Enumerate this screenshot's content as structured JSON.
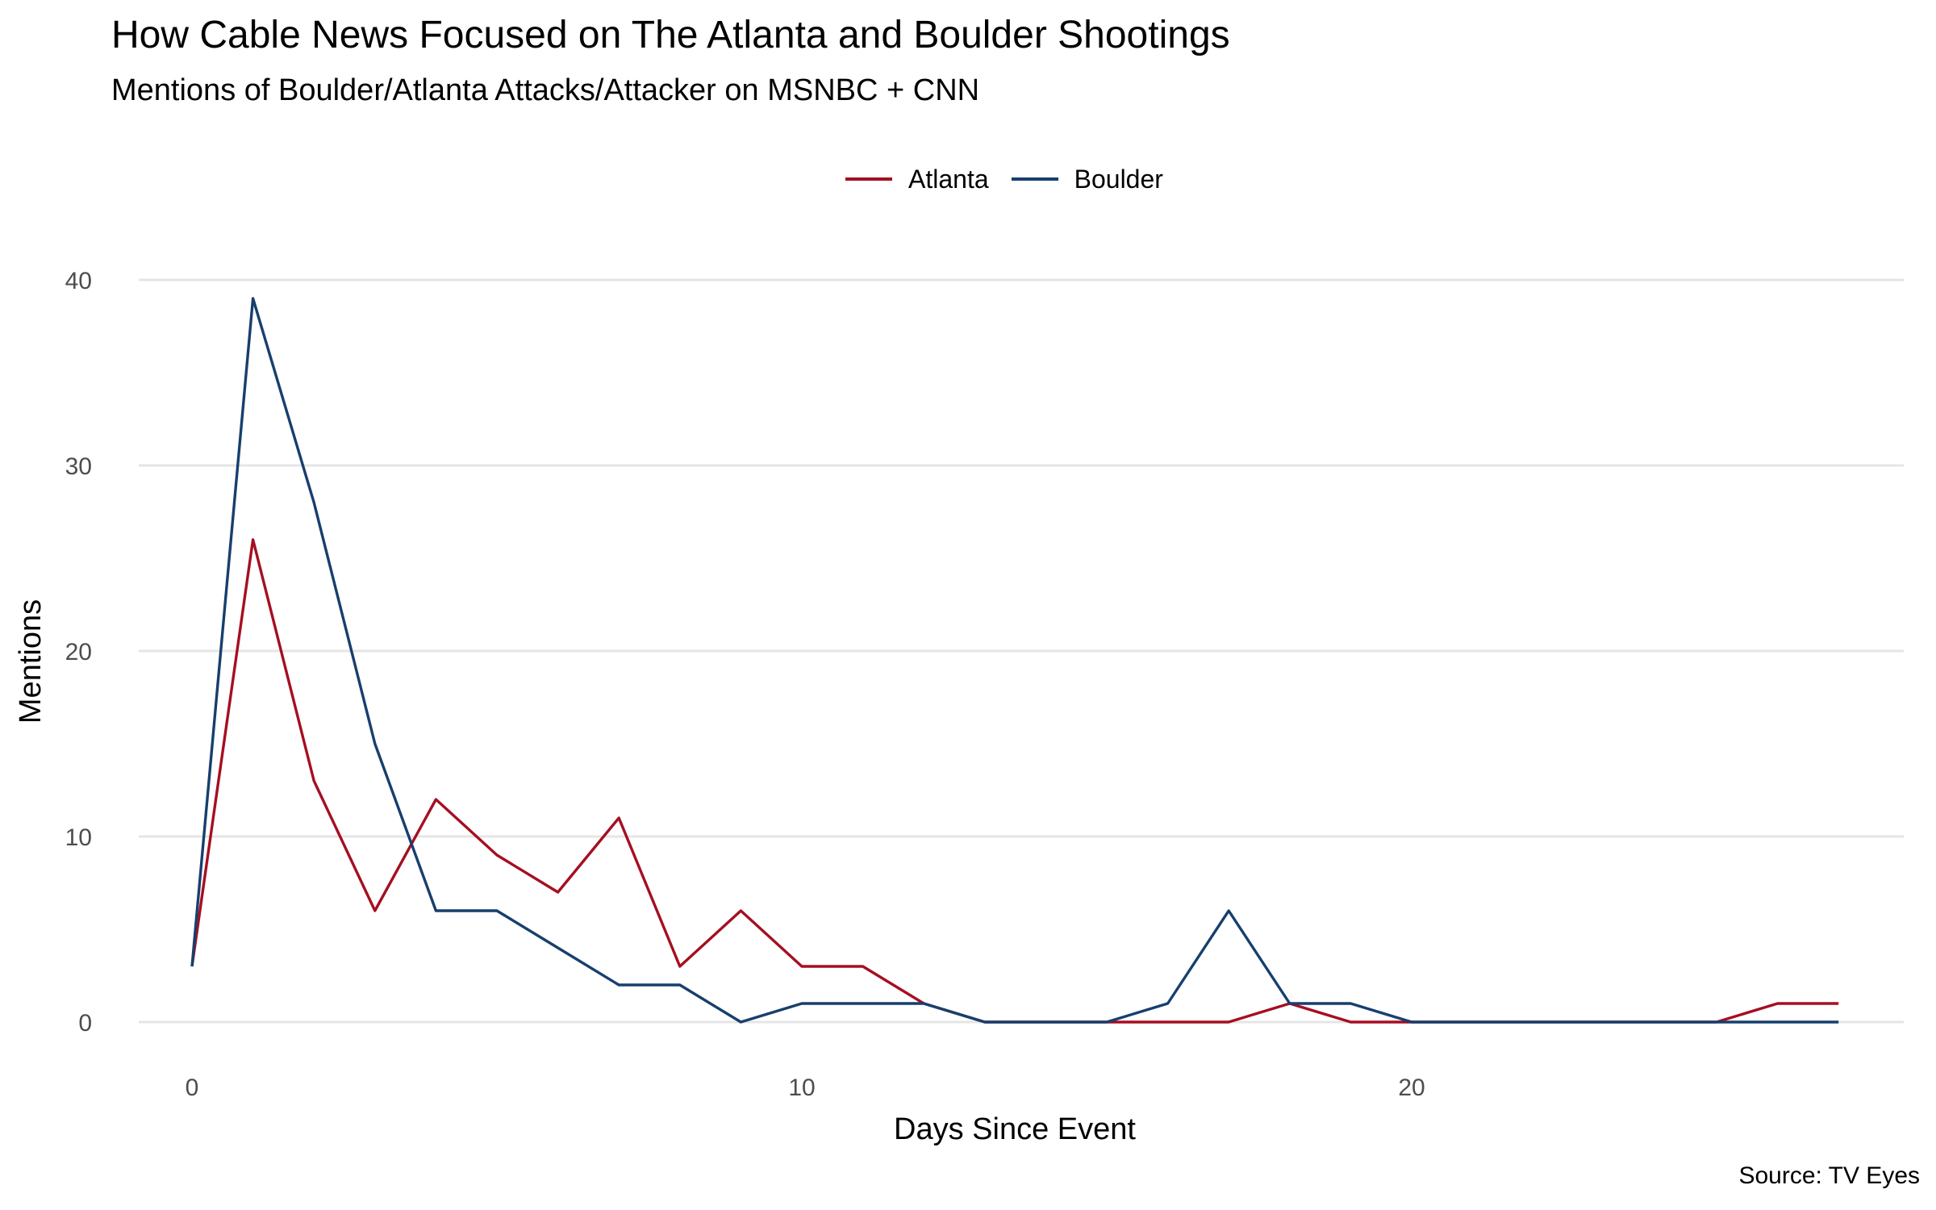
{
  "chart_data": {
    "type": "line",
    "title": "How Cable News Focused on The Atlanta and Boulder Shootings",
    "subtitle": "Mentions of Boulder/Atlanta Attacks/Attacker on MSNBC + CNN",
    "xlabel": "Days Since Event",
    "ylabel": "Mentions",
    "caption": "Source: TV Eyes",
    "legend_position": "top",
    "grid": "horizontal-major",
    "xlim": [
      0,
      27
    ],
    "ylim": [
      0,
      40
    ],
    "x_ticks": [
      0,
      10,
      20
    ],
    "y_ticks": [
      0,
      10,
      20,
      30,
      40
    ],
    "x": [
      0,
      1,
      2,
      3,
      4,
      5,
      6,
      7,
      8,
      9,
      10,
      11,
      12,
      13,
      14,
      15,
      16,
      17,
      18,
      19,
      20,
      21,
      22,
      23,
      24,
      25,
      26,
      27
    ],
    "series": [
      {
        "name": "Atlanta",
        "color": "#a50f21",
        "values": [
          3,
          26,
          13,
          6,
          12,
          9,
          7,
          11,
          3,
          6,
          3,
          3,
          1,
          0,
          0,
          0,
          0,
          0,
          1,
          0,
          0,
          0,
          0,
          0,
          0,
          0,
          1,
          1
        ]
      },
      {
        "name": "Boulder",
        "color": "#173f6e",
        "values": [
          3,
          39,
          28,
          15,
          6,
          6,
          4,
          2,
          2,
          0,
          1,
          1,
          1,
          0,
          0,
          0,
          1,
          6,
          1,
          1,
          0,
          0,
          0,
          0,
          0,
          0,
          0,
          0
        ]
      }
    ]
  },
  "colors": {
    "gridline": "#e5e5e5",
    "tick_text": "#4d4d4d",
    "background": "#ffffff"
  }
}
